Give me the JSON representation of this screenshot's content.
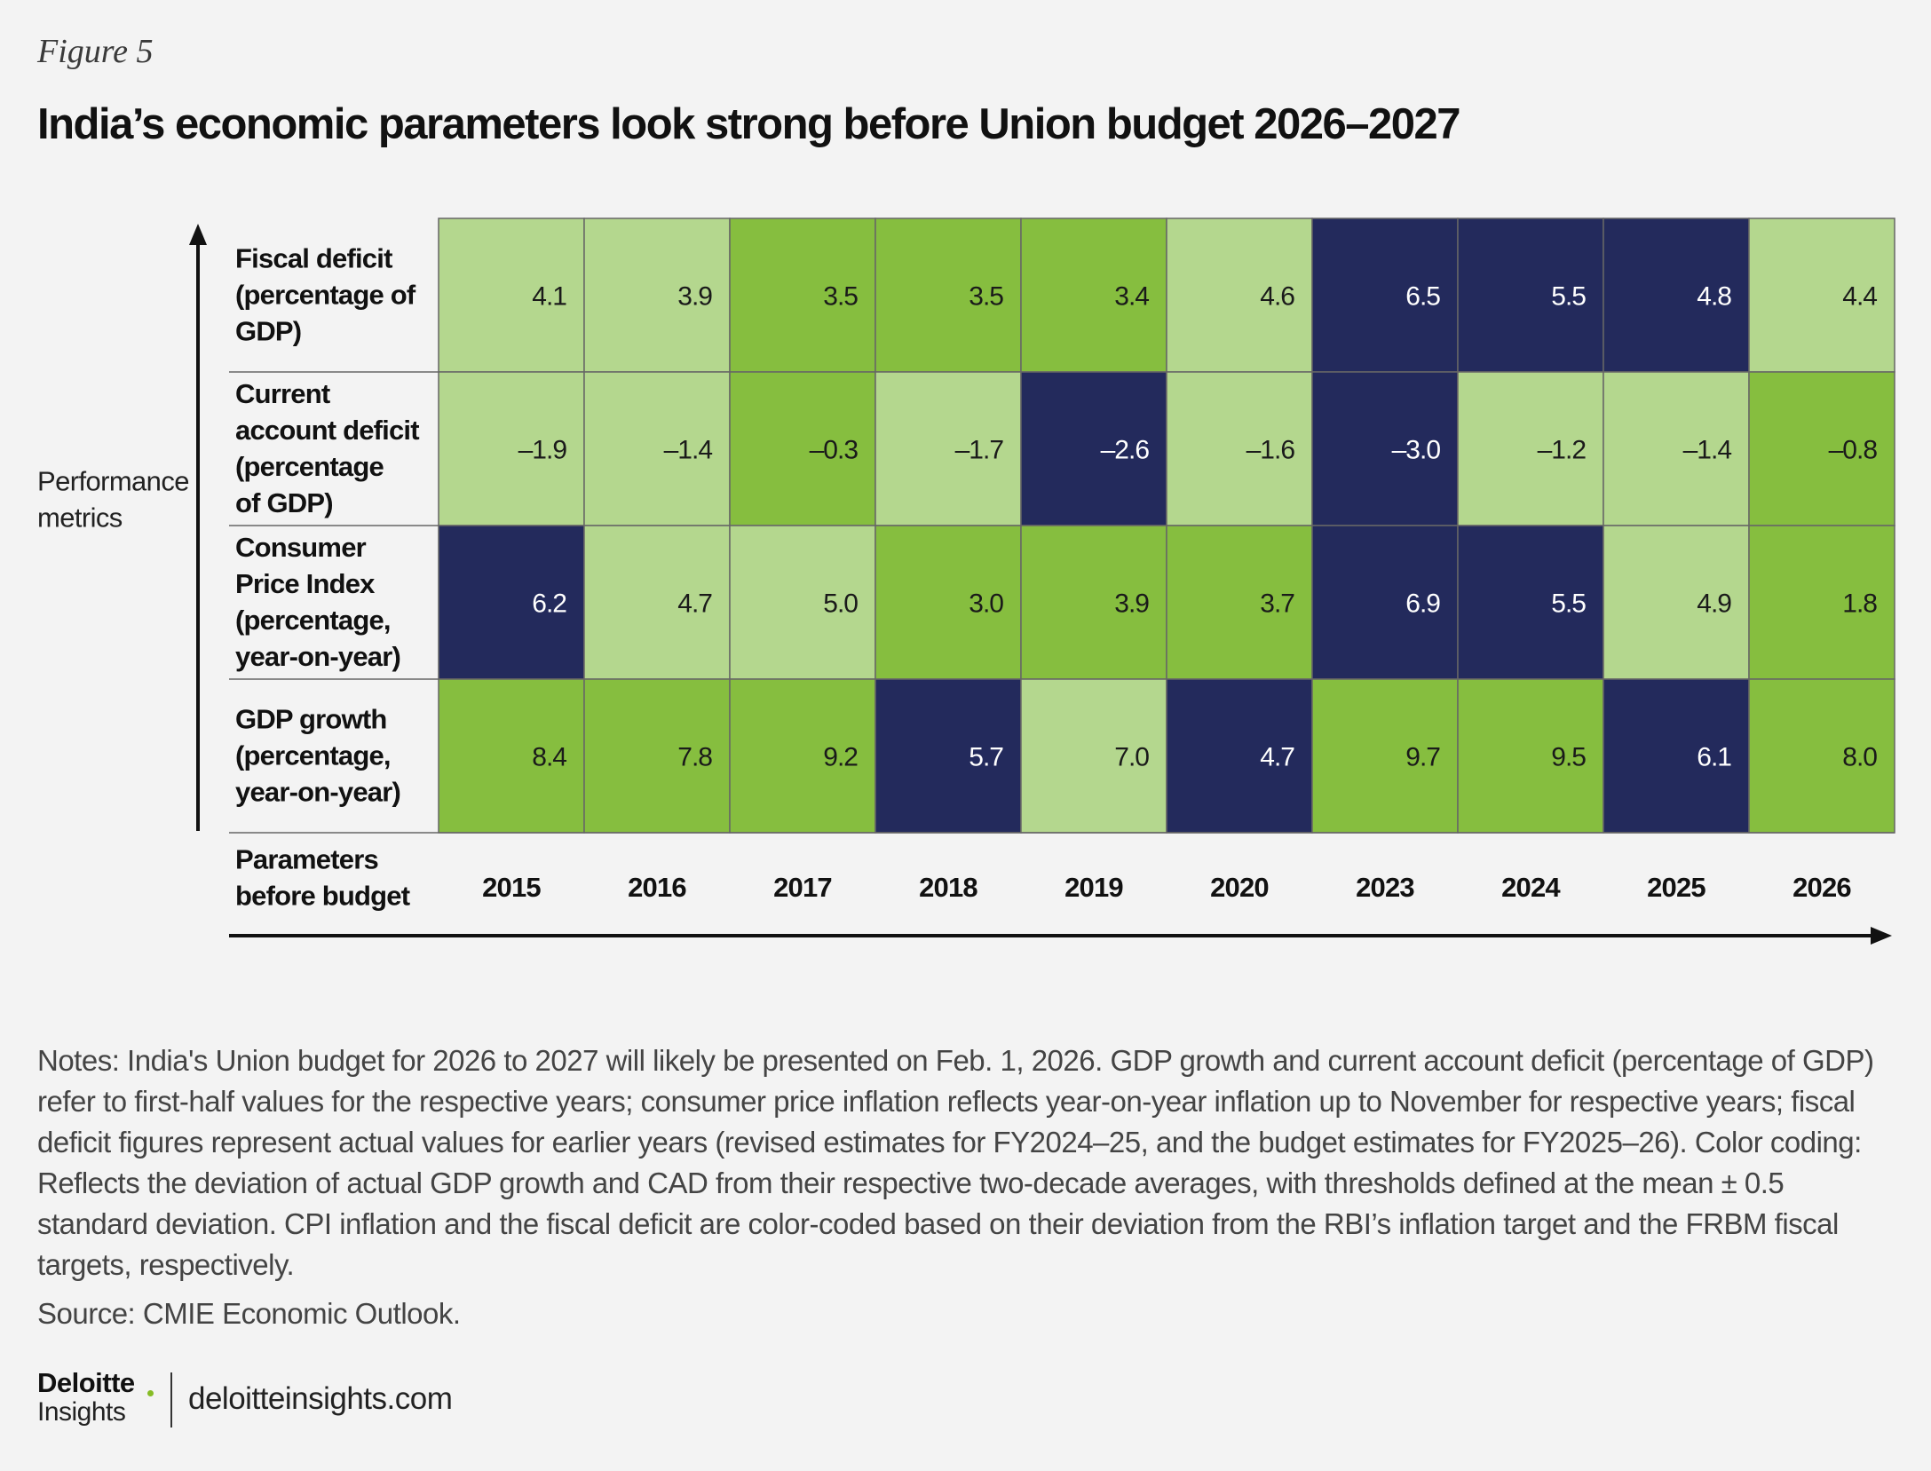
{
  "figure_label": "Figure 5",
  "title": "India’s economic parameters look strong before Union budget 2026–2027",
  "notes": "Notes: India's Union budget for 2026 to 2027 will likely be presented on Feb. 1, 2026. GDP growth and current account deficit (percentage of GDP) refer to first-half values for the respective years; consumer price inflation reflects year-on-year inflation up to November for respective years; fiscal deficit figures represent actual values for earlier years (revised estimates for FY2024–25, and the budget estimates for FY2025–26). Color coding: Reflects the deviation of actual GDP growth and CAD from their respective two-decade averages, with thresholds defined at the mean ± 0.5 standard deviation. CPI inflation and the fiscal deficit are color-coded based on their deviation from the RBI’s inflation target and the FRBM fiscal targets, respectively.",
  "source": "Source: CMIE Economic Outlook.",
  "footer": {
    "brand": "Deloitte",
    "sub": "Insights",
    "site": "deloitteinsights.com"
  },
  "colors": {
    "light_green": "#b4d78e",
    "green": "#86be3f",
    "navy": "#232a5c",
    "grid_line": "#666666",
    "axis": "#111111"
  },
  "chart_data": {
    "type": "heatmap",
    "y_axis_label": "Performance\nmetrics",
    "x_axis_label": "Parameters\nbefore budget",
    "columns": [
      "2015",
      "2016",
      "2017",
      "2018",
      "2019",
      "2020",
      "2023",
      "2024",
      "2025",
      "2026"
    ],
    "rows": [
      {
        "label": "Fiscal deficit\n(percentage of\nGDP)",
        "values": [
          "4.1",
          "3.9",
          "3.5",
          "3.5",
          "3.4",
          "4.6",
          "6.5",
          "5.5",
          "4.8",
          "4.4"
        ],
        "colors": [
          "light_green",
          "light_green",
          "green",
          "green",
          "green",
          "light_green",
          "navy",
          "navy",
          "navy",
          "light_green"
        ]
      },
      {
        "label": "Current\naccount deficit\n(percentage\nof GDP)",
        "values": [
          "–1.9",
          "–1.4",
          "–0.3",
          "–1.7",
          "–2.6",
          "–1.6",
          "–3.0",
          "–1.2",
          "–1.4",
          "–0.8"
        ],
        "colors": [
          "light_green",
          "light_green",
          "green",
          "light_green",
          "navy",
          "light_green",
          "navy",
          "light_green",
          "light_green",
          "green"
        ]
      },
      {
        "label": "Consumer\nPrice Index\n(percentage,\nyear-on-year)",
        "values": [
          "6.2",
          "4.7",
          "5.0",
          "3.0",
          "3.9",
          "3.7",
          "6.9",
          "5.5",
          "4.9",
          "1.8"
        ],
        "colors": [
          "navy",
          "light_green",
          "light_green",
          "green",
          "green",
          "green",
          "navy",
          "navy",
          "light_green",
          "green"
        ]
      },
      {
        "label": "GDP growth\n(percentage,\nyear-on-year)",
        "values": [
          "8.4",
          "7.8",
          "9.2",
          "5.7",
          "7.0",
          "4.7",
          "9.7",
          "9.5",
          "6.1",
          "8.0"
        ],
        "colors": [
          "green",
          "green",
          "green",
          "navy",
          "light_green",
          "navy",
          "green",
          "green",
          "navy",
          "green"
        ]
      }
    ]
  }
}
